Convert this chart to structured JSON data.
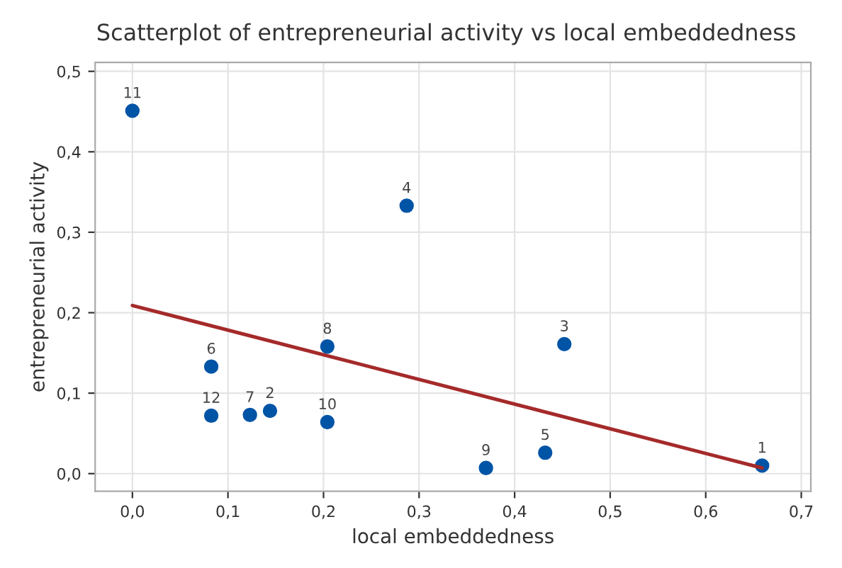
{
  "chart_data": {
    "type": "scatter",
    "title": "Scatterplot of entrepreneurial activity vs local embeddedness",
    "xlabel": "local embeddedness",
    "ylabel": "entrepreneurial activity",
    "xlim": [
      -0.039,
      0.71
    ],
    "ylim": [
      -0.022,
      0.511
    ],
    "xticks": [
      {
        "value": 0,
        "label": "0,0"
      },
      {
        "value": 0.1,
        "label": "0,1"
      },
      {
        "value": 0.2,
        "label": "0,2"
      },
      {
        "value": 0.3,
        "label": "0,3"
      },
      {
        "value": 0.4,
        "label": "0,4"
      },
      {
        "value": 0.5,
        "label": "0,5"
      },
      {
        "value": 0.6,
        "label": "0,6"
      },
      {
        "value": 0.7,
        "label": "0,7"
      }
    ],
    "yticks": [
      {
        "value": 0,
        "label": "0,0"
      },
      {
        "value": 0.1,
        "label": "0,1"
      },
      {
        "value": 0.2,
        "label": "0,2"
      },
      {
        "value": 0.3,
        "label": "0,3"
      },
      {
        "value": 0.4,
        "label": "0,4"
      },
      {
        "value": 0.5,
        "label": "0,5"
      }
    ],
    "grid": true,
    "marker": "circle",
    "legend": false,
    "series": [
      {
        "color": "#0054a6",
        "x": [
          0.659,
          0.144,
          0.452,
          0.287,
          0.432,
          0.0825,
          0.123,
          0.204,
          0.37,
          0.204,
          0.0,
          0.0825
        ],
        "values": [
          0.01,
          0.078,
          0.161,
          0.333,
          0.026,
          0.133,
          0.073,
          0.158,
          0.007,
          0.064,
          0.451,
          0.072
        ]
      },
      {
        "type": "line",
        "color": "#a52a2a",
        "x": [
          0.0,
          0.659
        ],
        "values": [
          0.209,
          0.007
        ],
        "marker": "none"
      }
    ],
    "annotations": [
      {
        "text": "1",
        "x": 0.659,
        "y": 0.01
      },
      {
        "text": "2",
        "x": 0.144,
        "y": 0.078
      },
      {
        "text": "3",
        "x": 0.452,
        "y": 0.161
      },
      {
        "text": "4",
        "x": 0.287,
        "y": 0.333
      },
      {
        "text": "5",
        "x": 0.432,
        "y": 0.026
      },
      {
        "text": "6",
        "x": 0.0825,
        "y": 0.133
      },
      {
        "text": "7",
        "x": 0.123,
        "y": 0.073
      },
      {
        "text": "8",
        "x": 0.204,
        "y": 0.158
      },
      {
        "text": "9",
        "x": 0.37,
        "y": 0.007
      },
      {
        "text": "10",
        "x": 0.204,
        "y": 0.064
      },
      {
        "text": "11",
        "x": 0.0,
        "y": 0.451
      },
      {
        "text": "12",
        "x": 0.0825,
        "y": 0.072
      }
    ]
  }
}
